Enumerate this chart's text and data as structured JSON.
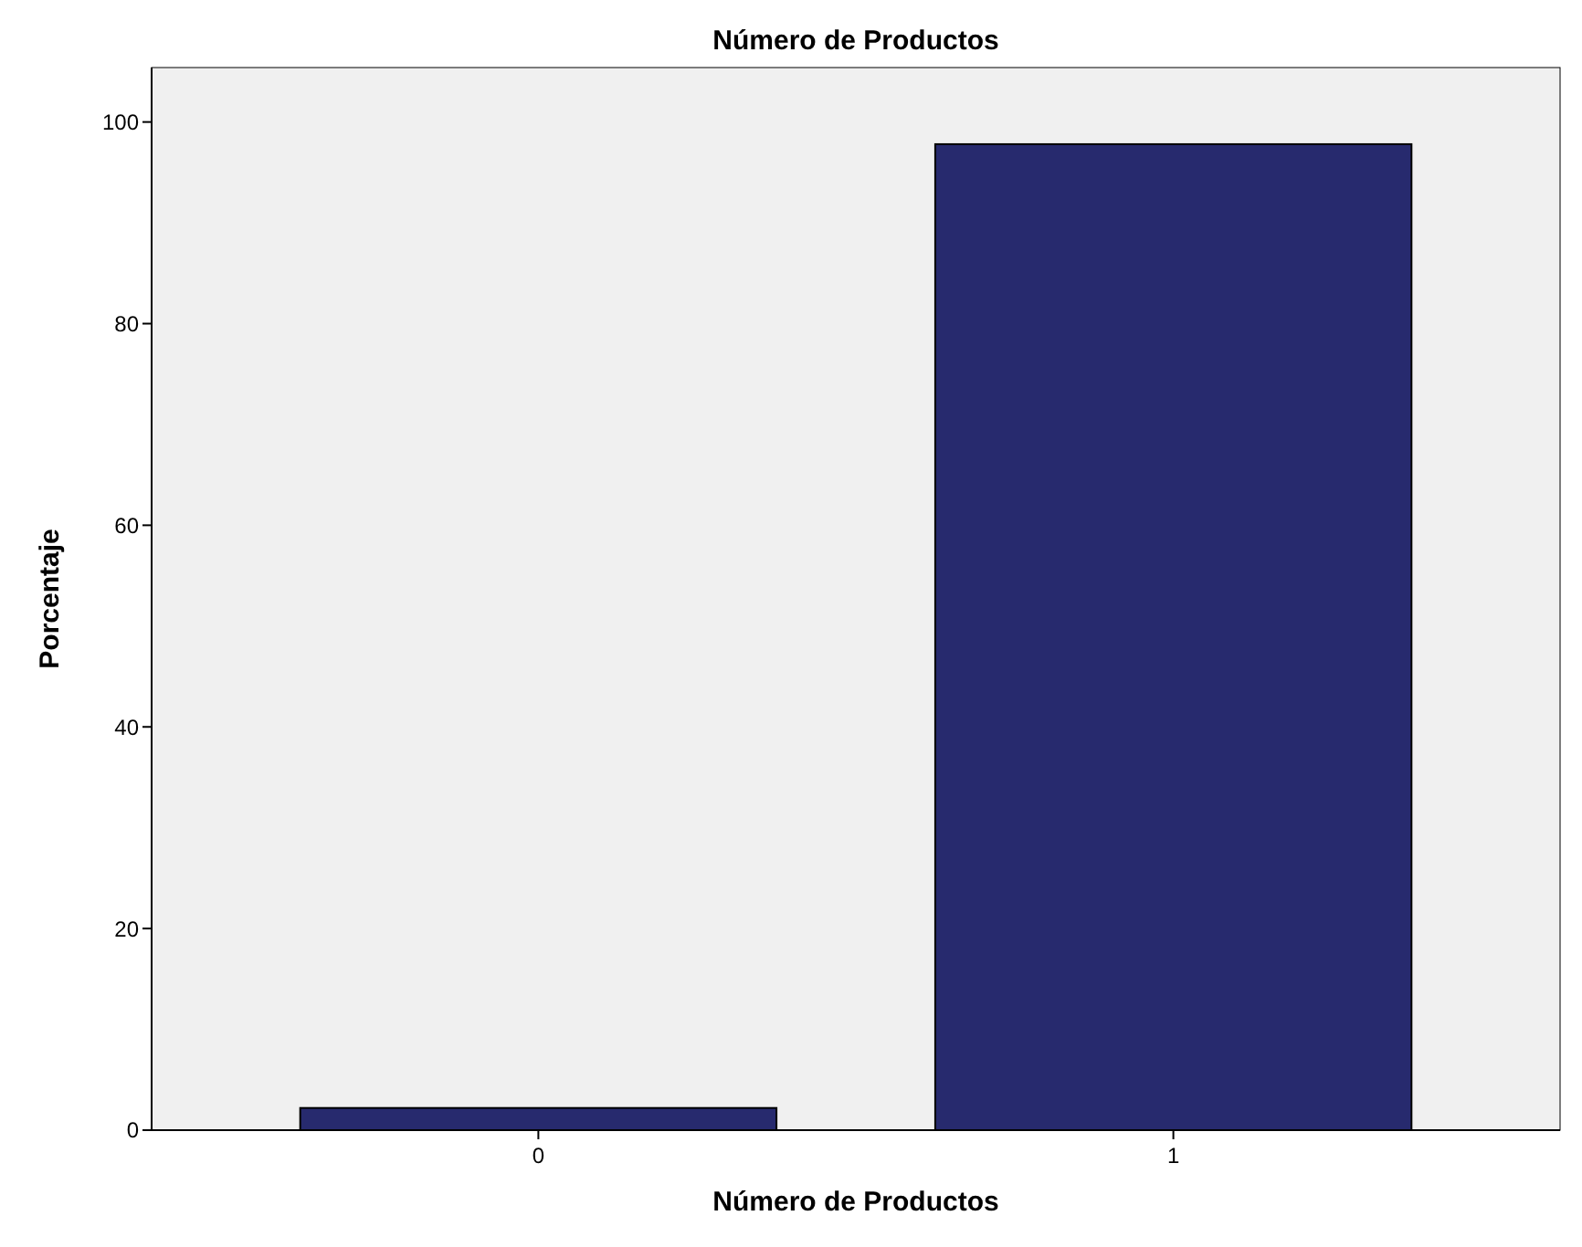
{
  "chart_data": {
    "type": "bar",
    "title": "Número de Productos",
    "xlabel": "Número de Productos",
    "ylabel": "Porcentaje",
    "categories": [
      "0",
      "1"
    ],
    "values": [
      2.2,
      97.8
    ],
    "color": "#272a6e",
    "ylim": [
      0,
      105.4
    ],
    "yticks": [
      0,
      20,
      40,
      60,
      80,
      100
    ],
    "grid": false
  }
}
